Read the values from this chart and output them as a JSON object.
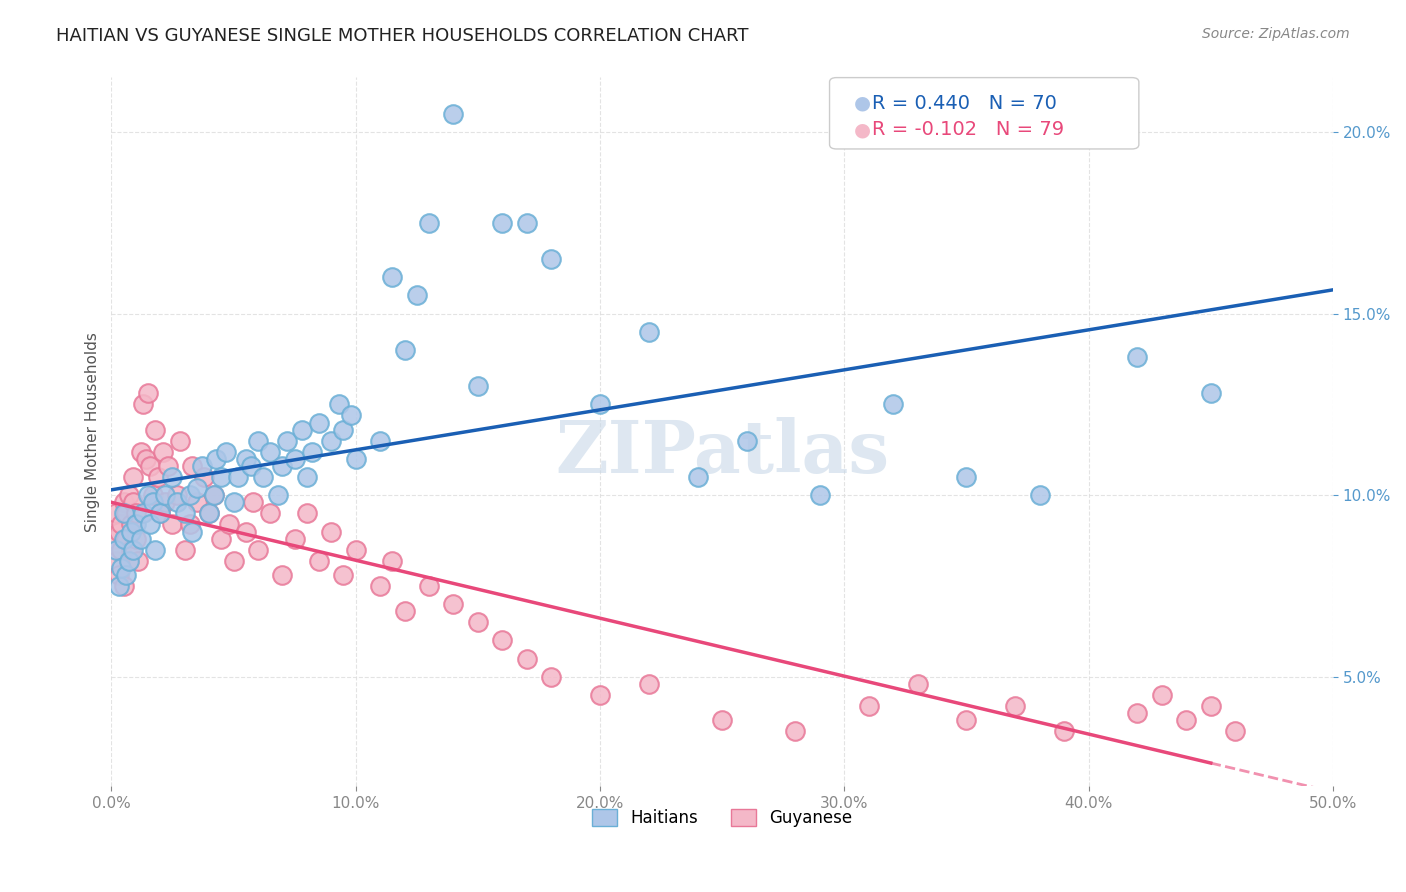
{
  "title": "HAITIAN VS GUYANESE SINGLE MOTHER HOUSEHOLDS CORRELATION CHART",
  "source": "Source: ZipAtlas.com",
  "ylabel": "Single Mother Households",
  "xlabel_ticks": [
    "0.0%",
    "10.0%",
    "20.0%",
    "30.0%",
    "40.0%",
    "50.0%"
  ],
  "ylabel_ticks": [
    "5.0%",
    "10.0%",
    "15.0%",
    "20.0%"
  ],
  "xlim": [
    0,
    0.5
  ],
  "ylim": [
    0.02,
    0.215
  ],
  "haitian_R": 0.44,
  "haitian_N": 70,
  "guyanese_R": -0.102,
  "guyanese_N": 79,
  "haitian_color": "#aec6e8",
  "haitian_edge": "#6aafd6",
  "guyanese_color": "#f4b8c8",
  "guyanese_edge": "#e87898",
  "haitian_line_color": "#1a5fb4",
  "guyanese_line_color": "#e8487a",
  "guyanese_line_dash": [
    6,
    4
  ],
  "watermark": "ZIPatlas",
  "watermark_color": "#c8d8e8",
  "grid_color": "#dddddd",
  "background_color": "#ffffff",
  "haitian_x": [
    0.002,
    0.003,
    0.004,
    0.005,
    0.005,
    0.006,
    0.007,
    0.008,
    0.009,
    0.01,
    0.012,
    0.013,
    0.015,
    0.016,
    0.017,
    0.018,
    0.02,
    0.022,
    0.025,
    0.027,
    0.03,
    0.032,
    0.033,
    0.035,
    0.037,
    0.04,
    0.042,
    0.043,
    0.045,
    0.047,
    0.05,
    0.052,
    0.055,
    0.057,
    0.06,
    0.062,
    0.065,
    0.068,
    0.07,
    0.072,
    0.075,
    0.078,
    0.08,
    0.082,
    0.085,
    0.09,
    0.093,
    0.095,
    0.098,
    0.1,
    0.11,
    0.115,
    0.12,
    0.125,
    0.13,
    0.14,
    0.15,
    0.16,
    0.17,
    0.18,
    0.2,
    0.22,
    0.24,
    0.26,
    0.29,
    0.32,
    0.35,
    0.38,
    0.42,
    0.45
  ],
  "haitian_y": [
    0.085,
    0.075,
    0.08,
    0.088,
    0.095,
    0.078,
    0.082,
    0.09,
    0.085,
    0.092,
    0.088,
    0.095,
    0.1,
    0.092,
    0.098,
    0.085,
    0.095,
    0.1,
    0.105,
    0.098,
    0.095,
    0.1,
    0.09,
    0.102,
    0.108,
    0.095,
    0.1,
    0.11,
    0.105,
    0.112,
    0.098,
    0.105,
    0.11,
    0.108,
    0.115,
    0.105,
    0.112,
    0.1,
    0.108,
    0.115,
    0.11,
    0.118,
    0.105,
    0.112,
    0.12,
    0.115,
    0.125,
    0.118,
    0.122,
    0.11,
    0.115,
    0.16,
    0.14,
    0.155,
    0.175,
    0.205,
    0.13,
    0.175,
    0.175,
    0.165,
    0.125,
    0.145,
    0.105,
    0.115,
    0.1,
    0.125,
    0.105,
    0.1,
    0.138,
    0.128
  ],
  "guyanese_x": [
    0.001,
    0.002,
    0.002,
    0.003,
    0.003,
    0.004,
    0.004,
    0.005,
    0.005,
    0.006,
    0.006,
    0.007,
    0.007,
    0.008,
    0.008,
    0.009,
    0.009,
    0.01,
    0.01,
    0.011,
    0.012,
    0.013,
    0.014,
    0.015,
    0.016,
    0.017,
    0.018,
    0.019,
    0.02,
    0.021,
    0.022,
    0.023,
    0.025,
    0.027,
    0.028,
    0.03,
    0.032,
    0.033,
    0.035,
    0.038,
    0.04,
    0.042,
    0.045,
    0.048,
    0.05,
    0.055,
    0.058,
    0.06,
    0.065,
    0.07,
    0.075,
    0.08,
    0.085,
    0.09,
    0.095,
    0.1,
    0.11,
    0.115,
    0.12,
    0.13,
    0.14,
    0.15,
    0.16,
    0.17,
    0.18,
    0.2,
    0.22,
    0.25,
    0.28,
    0.31,
    0.33,
    0.35,
    0.37,
    0.39,
    0.42,
    0.43,
    0.44,
    0.45,
    0.46
  ],
  "guyanese_y": [
    0.088,
    0.095,
    0.082,
    0.09,
    0.078,
    0.085,
    0.092,
    0.098,
    0.075,
    0.088,
    0.095,
    0.082,
    0.1,
    0.092,
    0.085,
    0.098,
    0.105,
    0.088,
    0.095,
    0.082,
    0.112,
    0.125,
    0.11,
    0.128,
    0.108,
    0.1,
    0.118,
    0.105,
    0.095,
    0.112,
    0.098,
    0.108,
    0.092,
    0.1,
    0.115,
    0.085,
    0.092,
    0.108,
    0.098,
    0.105,
    0.095,
    0.1,
    0.088,
    0.092,
    0.082,
    0.09,
    0.098,
    0.085,
    0.095,
    0.078,
    0.088,
    0.095,
    0.082,
    0.09,
    0.078,
    0.085,
    0.075,
    0.082,
    0.068,
    0.075,
    0.07,
    0.065,
    0.06,
    0.055,
    0.05,
    0.045,
    0.048,
    0.038,
    0.035,
    0.042,
    0.048,
    0.038,
    0.042,
    0.035,
    0.04,
    0.045,
    0.038,
    0.042,
    0.035
  ]
}
